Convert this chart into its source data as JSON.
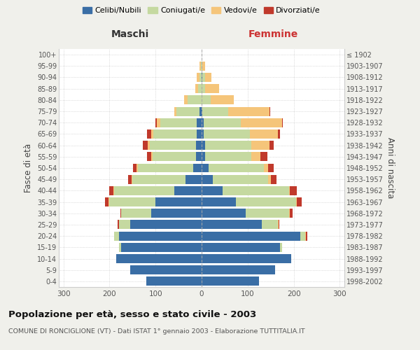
{
  "age_groups": [
    "0-4",
    "5-9",
    "10-14",
    "15-19",
    "20-24",
    "25-29",
    "30-34",
    "35-39",
    "40-44",
    "45-49",
    "50-54",
    "55-59",
    "60-64",
    "65-69",
    "70-74",
    "75-79",
    "80-84",
    "85-89",
    "90-94",
    "95-99",
    "100+"
  ],
  "birth_years": [
    "1998-2002",
    "1993-1997",
    "1988-1992",
    "1983-1987",
    "1978-1982",
    "1973-1977",
    "1968-1972",
    "1963-1967",
    "1958-1962",
    "1953-1957",
    "1948-1952",
    "1943-1947",
    "1938-1942",
    "1933-1937",
    "1928-1932",
    "1923-1927",
    "1918-1922",
    "1913-1917",
    "1908-1912",
    "1903-1907",
    "≤ 1902"
  ],
  "males": {
    "celibe": [
      120,
      155,
      185,
      175,
      180,
      155,
      110,
      100,
      60,
      35,
      18,
      12,
      12,
      10,
      10,
      5,
      0,
      0,
      0,
      0,
      0
    ],
    "coniugato": [
      0,
      0,
      0,
      5,
      10,
      25,
      65,
      100,
      130,
      115,
      120,
      95,
      100,
      95,
      80,
      50,
      30,
      8,
      5,
      2,
      0
    ],
    "vedovo": [
      0,
      0,
      0,
      0,
      0,
      0,
      0,
      2,
      2,
      2,
      3,
      2,
      5,
      5,
      8,
      5,
      8,
      5,
      5,
      2,
      0
    ],
    "divorziato": [
      0,
      0,
      0,
      0,
      0,
      2,
      2,
      8,
      8,
      8,
      8,
      10,
      10,
      8,
      2,
      0,
      0,
      0,
      0,
      0,
      0
    ]
  },
  "females": {
    "nubile": [
      125,
      160,
      195,
      170,
      215,
      130,
      95,
      75,
      45,
      25,
      15,
      8,
      8,
      5,
      5,
      2,
      0,
      0,
      2,
      0,
      0
    ],
    "coniugata": [
      0,
      0,
      0,
      5,
      10,
      35,
      95,
      130,
      145,
      120,
      120,
      100,
      100,
      100,
      80,
      55,
      20,
      8,
      5,
      2,
      0
    ],
    "vedova": [
      0,
      0,
      0,
      0,
      2,
      2,
      2,
      2,
      2,
      5,
      10,
      20,
      40,
      60,
      90,
      90,
      50,
      30,
      15,
      5,
      0
    ],
    "divorziata": [
      0,
      0,
      0,
      0,
      2,
      2,
      5,
      10,
      15,
      12,
      12,
      15,
      8,
      5,
      2,
      2,
      0,
      0,
      0,
      0,
      0
    ]
  },
  "colors": {
    "celibe": "#3a6ea5",
    "coniugato": "#c5d9a0",
    "vedovo": "#f5c57a",
    "divorziato": "#c0392b"
  },
  "legend_labels": [
    "Celibi/Nubili",
    "Coniugati/e",
    "Vedovi/e",
    "Divorziati/e"
  ],
  "title": "Popolazione per età, sesso e stato civile - 2003",
  "subtitle": "COMUNE DI RONCIGLIONE (VT) - Dati ISTAT 1° gennaio 2003 - Elaborazione TUTTITALIA.IT",
  "ylabel_left": "Fasce di età",
  "ylabel_right": "Anni di nascita",
  "xlabel_left": "Maschi",
  "xlabel_right": "Femmine",
  "xlim": 310,
  "bg_color": "#f0f0eb",
  "plot_bg": "#ffffff"
}
